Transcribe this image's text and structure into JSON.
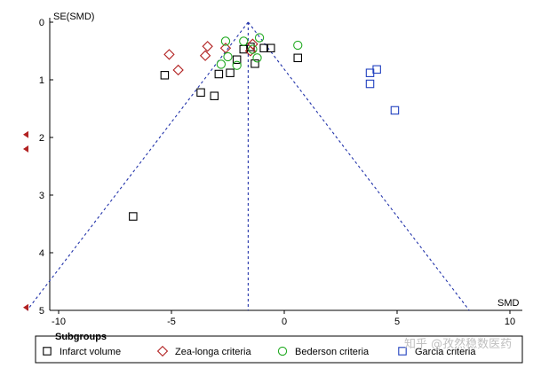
{
  "watermark": "知乎 @孜然稳数医药",
  "legend": {
    "title": "Subgroups",
    "items": [
      {
        "label": "Infarct volume",
        "marker": "square",
        "color": "#000000"
      },
      {
        "label": "Zea-longa criteria",
        "marker": "diamond",
        "color": "#b22222"
      },
      {
        "label": "Bederson criteria",
        "marker": "circle",
        "color": "#22aa22"
      },
      {
        "label": "Garcia criteria",
        "marker": "square",
        "color": "#1f3fbf"
      }
    ]
  },
  "chart_data": {
    "type": "scatter",
    "title": "",
    "xlabel": "SMD",
    "ylabel": "SE(SMD)",
    "xlim": [
      -10,
      10
    ],
    "ylim": [
      0,
      5
    ],
    "y_inverted": true,
    "xticks": [
      "-10",
      "-5",
      "0",
      "5",
      "10"
    ],
    "yticks": [
      "0",
      "1",
      "2",
      "3",
      "4",
      "5"
    ],
    "pooled_smd": -1.6,
    "funnel_apex_se": 0,
    "funnel_base_se": 5,
    "funnel_left_x_at_base": -11.4,
    "funnel_right_x_at_base": 8.2,
    "missing_study_arrows_se": [
      1.95,
      2.2,
      4.95
    ],
    "series": [
      {
        "name": "Infarct volume",
        "marker": "square",
        "color": "#000000",
        "points": [
          [
            -1.5,
            0.43
          ],
          [
            -0.9,
            0.45
          ],
          [
            -0.6,
            0.45
          ],
          [
            -1.3,
            0.72
          ],
          [
            0.6,
            0.62
          ],
          [
            -2.1,
            0.65
          ],
          [
            -2.9,
            0.9
          ],
          [
            -2.4,
            0.88
          ],
          [
            -5.3,
            0.92
          ],
          [
            -3.7,
            1.22
          ],
          [
            -3.1,
            1.28
          ],
          [
            -6.7,
            3.37
          ],
          [
            -1.8,
            0.47
          ]
        ]
      },
      {
        "name": "Zea-longa criteria",
        "marker": "diamond",
        "color": "#b22222",
        "points": [
          [
            -5.1,
            0.56
          ],
          [
            -4.7,
            0.83
          ],
          [
            -3.4,
            0.42
          ],
          [
            -3.5,
            0.58
          ],
          [
            -2.6,
            0.45
          ],
          [
            -1.4,
            0.38
          ],
          [
            -1.5,
            0.5
          ]
        ]
      },
      {
        "name": "Bederson criteria",
        "marker": "circle",
        "color": "#22aa22",
        "points": [
          [
            -2.6,
            0.33
          ],
          [
            -1.1,
            0.27
          ],
          [
            -1.8,
            0.33
          ],
          [
            -2.8,
            0.73
          ],
          [
            -2.5,
            0.6
          ],
          [
            -2.1,
            0.75
          ],
          [
            -1.4,
            0.47
          ],
          [
            -1.2,
            0.62
          ],
          [
            0.6,
            0.4
          ]
        ]
      },
      {
        "name": "Garcia criteria",
        "marker": "square",
        "color": "#1f3fbf",
        "points": [
          [
            3.8,
            0.88
          ],
          [
            4.1,
            0.82
          ],
          [
            3.8,
            1.07
          ],
          [
            4.9,
            1.53
          ]
        ]
      }
    ]
  }
}
